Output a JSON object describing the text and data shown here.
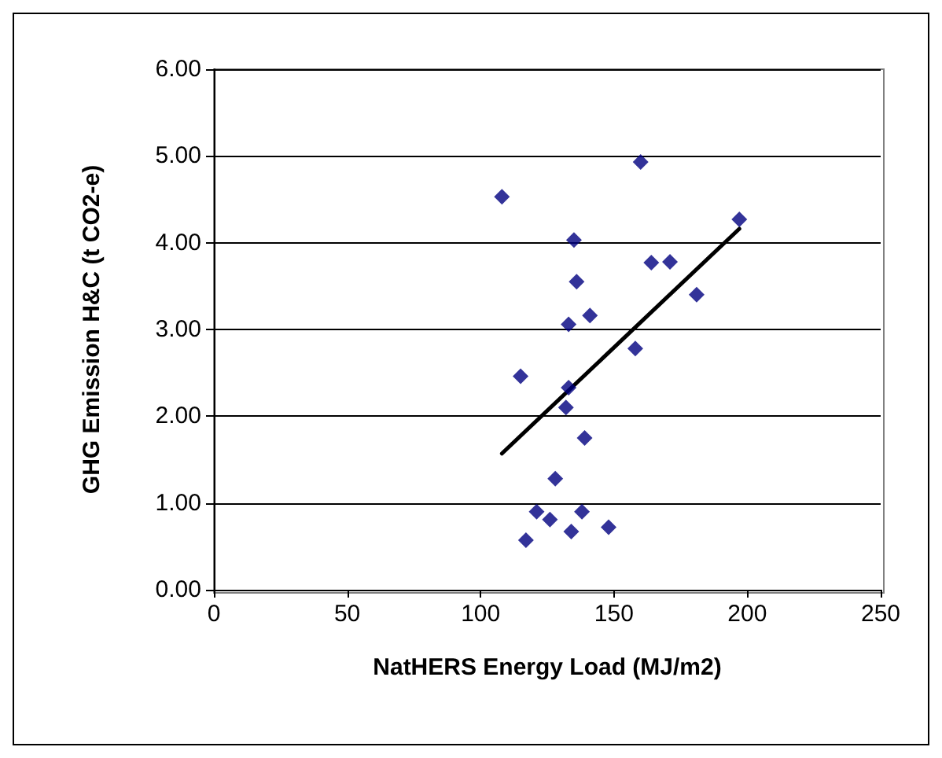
{
  "chart_data": {
    "type": "scatter",
    "xlabel": "NatHERS Energy Load (MJ/m2)",
    "ylabel": "GHG Emission H&C (t CO2-e)",
    "xlim": [
      0,
      250
    ],
    "xticks": [
      0,
      50,
      100,
      150,
      200,
      250
    ],
    "ylim": [
      0,
      6
    ],
    "yticks": [
      {
        "value": 0,
        "label": "0.00"
      },
      {
        "value": 1,
        "label": "1.00"
      },
      {
        "value": 2,
        "label": "2.00"
      },
      {
        "value": 3,
        "label": "3.00"
      },
      {
        "value": 4,
        "label": "4.00"
      },
      {
        "value": 5,
        "label": "5.00"
      },
      {
        "value": 6,
        "label": "6.00"
      }
    ],
    "grid": "y",
    "series": [
      {
        "color": "#000080",
        "marker": "diamond",
        "x": [
          108,
          160,
          135,
          136,
          164,
          171,
          197,
          181,
          141,
          133,
          158,
          115,
          133,
          132,
          139,
          128,
          121,
          126,
          138,
          117,
          134,
          148
        ],
        "values": [
          4.53,
          4.93,
          4.03,
          3.55,
          3.77,
          3.78,
          4.27,
          3.4,
          3.16,
          3.06,
          2.78,
          2.46,
          2.33,
          2.1,
          1.75,
          1.28,
          0.9,
          0.81,
          0.9,
          0.57,
          0.67,
          0.72
        ]
      },
      {
        "type": "line",
        "color": "#000000",
        "marker": "none",
        "x": [
          108,
          197
        ],
        "values": [
          1.57,
          4.16
        ]
      }
    ]
  }
}
